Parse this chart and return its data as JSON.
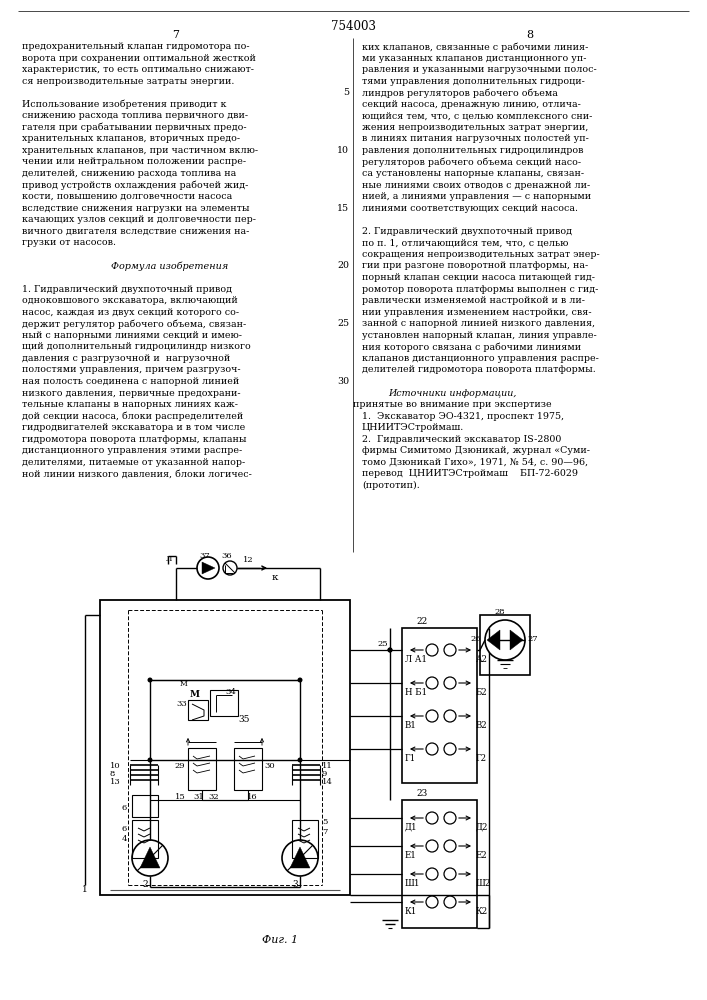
{
  "page_number_center": "754003",
  "page_number_left": "7",
  "page_number_right": "8",
  "col1_lines": [
    "предохранительный клапан гидромотора по-",
    "ворота при сохранении оптимальной жесткой",
    "характеристик, то есть оптимально снижают-",
    "ся непроизводительные затраты энергии.",
    "",
    "Использование изобретения приводит к",
    "снижению расхода топлива первичного дви-",
    "гателя при срабатывании первичных предо-",
    "хранительных клапанов, вторичных предо-",
    "хранительных клапанов, при частичном вклю-",
    "чении или нейтральном положении распре-",
    "делителей, снижению расхода топлива на",
    "привод устройств охлаждения рабочей жид-",
    "кости, повышению долговечности насоса",
    "вследствие снижения нагрузки на элементы",
    "качающих узлов секций и долговечности пер-",
    "вичного двигателя вследствие снижения на-",
    "грузки от насосов.",
    "",
    "Формула изобретения",
    "",
    "1. Гидравлический двухпоточный привод",
    "одноковшового экскаватора, включающий",
    "насос, каждая из двух секций которого со-",
    "держит регулятор рабочего объема, связан-",
    "ный с напорными линиями секций и имею-",
    "щий дополнительный гидроцилиндр низкого",
    "давления с разгрузочной и  нагрузочной",
    "полостями управления, причем разгрузоч-",
    "ная полость соединена с напорной линией",
    "низкого давления, первичные предохрани-",
    "тельные клапаны в напорных линиях каж-",
    "дой секции насоса, блоки распределителей",
    "гидродвигателей экскаватора и в том числе",
    "гидромотора поворота платформы, клапаны",
    "дистанционного управления этими распре-",
    "делителями, питаемые от указанной напор-",
    "ной линии низкого давления, блоки логичес-"
  ],
  "col2_lines": [
    "ких клапанов, связанные с рабочими линия-",
    "ми указанных клапанов дистанционного уп-",
    "равления и указанными нагрузочными полос-",
    "тями управления дополнительных гидроци-",
    "линдров регуляторов рабочего объема",
    "секций насоса, дренажную линию, отлича-",
    "ющийся тем, что, с целью комплексного сни-",
    "жения непроизводительных затрат энергии,",
    "в линиях питания нагрузочных полостей уп-",
    "равления дополнительных гидроцилиндров",
    "регуляторов рабочего объема секций насо-",
    "са установлены напорные клапаны, связан-",
    "ные линиями своих отводов с дренажной ли-",
    "нией, а линиями управления — с напорными",
    "линиями соответствующих секций насоса.",
    "",
    "2. Гидравлический двухпоточный привод",
    "по п. 1, отличающийся тем, что, с целью",
    "сокращения непроизводительных затрат энер-",
    "гии при разгоне поворотной платформы, на-",
    "порный клапан секции насоса питающей гид-",
    "ромотор поворота платформы выполнен с гид-",
    "равлически изменяемой настройкой и в ли-",
    "нии управления изменением настройки, свя-",
    "занной с напорной линией низкого давления,",
    "установлен напорный клапан, линия управле-",
    "ния которого связана с рабочими линиями",
    "клапанов дистанционного управления распре-",
    "делителей гидромотора поворота платформы.",
    "",
    "Источники информации,",
    "принятые во внимание при экспертизе",
    "1.  Экскаватор ЭО-4321, проспект 1975,",
    "ЦНИИТЭСтроймаш.",
    "2.  Гидравлический экскаватор IS-2800",
    "фирмы Симитомо Дзюникай, журнал «Суми-",
    "томо Дзюникай Гихо», 1971, № 54, с. 90—96,",
    "перевод  ЦНИИТЭСтроймаш    БП-72-6029",
    "(прототип)."
  ],
  "fig_caption": "Фиг. 1",
  "bg": "#ffffff"
}
